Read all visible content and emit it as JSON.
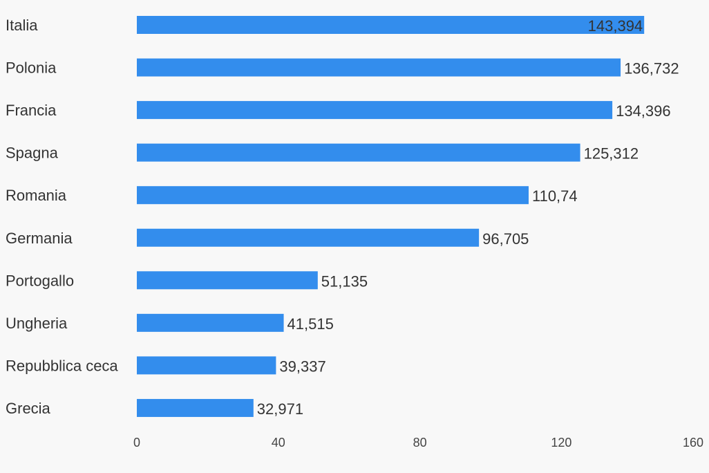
{
  "chart_data": {
    "type": "bar",
    "orientation": "horizontal",
    "categories": [
      "Italia",
      "Polonia",
      "Francia",
      "Spagna",
      "Romania",
      "Germania",
      "Portogallo",
      "Ungheria",
      "Repubblica ceca",
      "Grecia"
    ],
    "values": [
      143.394,
      136.732,
      134.396,
      125.312,
      110.74,
      96.705,
      51.135,
      41.515,
      39.337,
      32.971
    ],
    "value_labels": [
      "143,394",
      "136,732",
      "134,396",
      "125,312",
      "110,74",
      "96,705",
      "51,135",
      "41,515",
      "39,337",
      "32,971"
    ],
    "xlim": [
      0,
      160
    ],
    "xticks": [
      "0",
      "40",
      "80",
      "120",
      "160"
    ],
    "title": "",
    "xlabel": "",
    "ylabel": "",
    "grid": false,
    "bar_color": "#338ded",
    "background": "#f8f8f8"
  }
}
